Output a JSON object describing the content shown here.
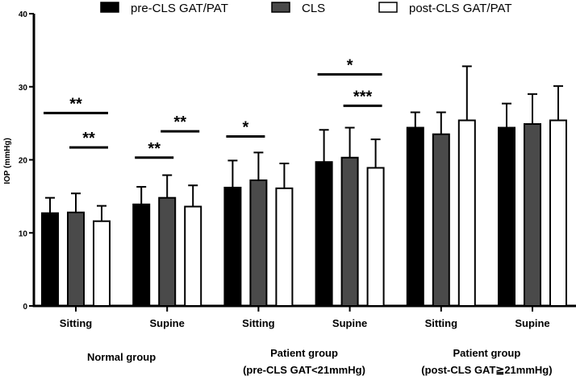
{
  "chart_data": {
    "type": "bar",
    "title": "",
    "ylabel": "IOP (mmHg)",
    "xlabel": "",
    "ylim": [
      0,
      40
    ],
    "yticks": [
      0,
      10,
      20,
      30,
      40
    ],
    "categories": [
      "Sitting",
      "Supine",
      "Sitting",
      "Supine",
      "Sitting",
      "Supine"
    ],
    "groups": [
      {
        "label": "Normal group",
        "sub": ""
      },
      {
        "label": "Patient group",
        "sub": "(pre-CLS GAT<21mmHg)"
      },
      {
        "label": "Patient group",
        "sub": "(post-CLS GAT≧21mmHg)"
      }
    ],
    "series": [
      {
        "name": "pre-CLS GAT/PAT",
        "color": "#000000",
        "values": [
          12.7,
          13.9,
          16.2,
          19.7,
          24.4,
          24.4
        ],
        "errors_upper": [
          14.8,
          16.3,
          19.9,
          24.1,
          26.5,
          27.7
        ]
      },
      {
        "name": "CLS",
        "color": "#4a4a4a",
        "values": [
          12.8,
          14.8,
          17.2,
          20.3,
          23.5,
          24.9
        ],
        "errors_upper": [
          15.4,
          17.9,
          21.0,
          24.4,
          26.5,
          29.0
        ]
      },
      {
        "name": "post-CLS GAT/PAT",
        "color": "#ffffff",
        "values": [
          11.6,
          13.6,
          16.1,
          18.9,
          25.4,
          25.4
        ],
        "errors_upper": [
          13.7,
          16.5,
          19.5,
          22.8,
          32.8,
          30.1
        ]
      }
    ],
    "annotations": [
      {
        "category": 0,
        "from": 0,
        "to": 2,
        "y": 26.4,
        "text": "**"
      },
      {
        "category": 0,
        "from": 1,
        "to": 2,
        "y": 21.7,
        "text": "**"
      },
      {
        "category": 1,
        "from": 0,
        "to": 1,
        "y": 20.3,
        "text": "**"
      },
      {
        "category": 1,
        "from": 1,
        "to": 2,
        "y": 23.9,
        "text": "**"
      },
      {
        "category": 2,
        "from": 0,
        "to": 1,
        "y": 23.2,
        "text": "*"
      },
      {
        "category": 3,
        "from": 0,
        "to": 2,
        "y": 31.7,
        "text": "*"
      },
      {
        "category": 3,
        "from": 1,
        "to": 2,
        "y": 27.4,
        "text": "***"
      }
    ],
    "legend": "top"
  }
}
